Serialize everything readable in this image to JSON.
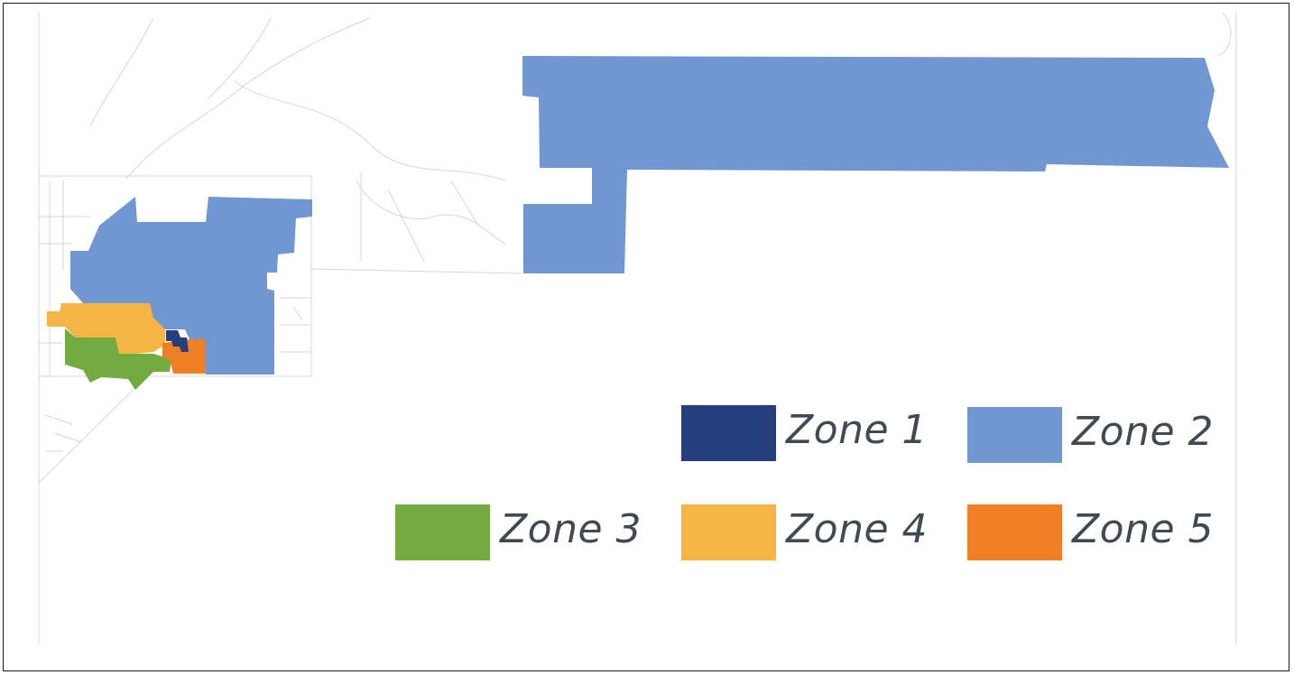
{
  "map": {
    "zones": [
      {
        "id": "zone-1",
        "name": "Zone 1",
        "color": "#253e7e"
      },
      {
        "id": "zone-2",
        "name": "Zone 2",
        "color": "#7097d1"
      },
      {
        "id": "zone-3",
        "name": "Zone 3",
        "color": "#73ab41"
      },
      {
        "id": "zone-4",
        "name": "Zone 4",
        "color": "#f5b444"
      },
      {
        "id": "zone-5",
        "name": "Zone 5",
        "color": "#ef7f24"
      }
    ],
    "colors": {
      "border": "#1a1a1a",
      "roads": "#d4d4d4",
      "label_text": "#3f4a52"
    }
  },
  "legend": {
    "items": [
      {
        "label": "Zone 1",
        "color": "#253e7e"
      },
      {
        "label": "Zone 2",
        "color": "#7097d1"
      },
      {
        "label": "Zone 3",
        "color": "#73ab41"
      },
      {
        "label": "Zone 4",
        "color": "#f5b444"
      },
      {
        "label": "Zone 5",
        "color": "#ef7f24"
      }
    ]
  }
}
